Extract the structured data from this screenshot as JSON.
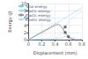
{
  "chart_data": {
    "type": "line",
    "xlabel": "Displacement (mm)",
    "ylabel": "Energy (J)",
    "xlim": [
      0,
      0.8
    ],
    "ylim": [
      0,
      10
    ],
    "xticks": [
      0,
      0.2,
      0.4,
      0.6,
      0.8
    ],
    "yticks": [
      0,
      2,
      4,
      6,
      8,
      10
    ],
    "grid": true,
    "legend": "upper left",
    "series": [
      {
        "name": "Total energy",
        "color": "#88ccee",
        "line_style": "dotted",
        "x": [
          0,
          0.1,
          0.2,
          0.3,
          0.4,
          0.5,
          0.6,
          0.7,
          0.8
        ],
        "values": [
          0,
          1.1,
          2.2,
          3.3,
          4.4,
          5.5,
          6.6,
          7.7,
          8.8
        ]
      },
      {
        "name": "Plastic energy",
        "color": "#aaddee",
        "line_style": "dotted",
        "x": [
          0,
          0.1,
          0.2,
          0.3,
          0.4,
          0.45,
          0.5,
          0.55,
          0.6,
          0.7,
          0.8
        ],
        "values": [
          0,
          0.0,
          0.0,
          0.0,
          0.2,
          0.8,
          2.0,
          3.5,
          5.0,
          6.5,
          7.8
        ]
      },
      {
        "name": "Elastic energy",
        "color": "#999999",
        "line_style": "solid",
        "x": [
          0,
          0.1,
          0.2,
          0.3,
          0.4,
          0.45,
          0.5,
          0.55,
          0.6,
          0.65,
          0.7
        ],
        "values": [
          0,
          1.0,
          2.0,
          3.0,
          4.0,
          4.3,
          3.5,
          2.0,
          0.8,
          0.2,
          0.0
        ]
      },
      {
        "name": "Kinetic energy",
        "color": "#bbddff",
        "line_style": "solid",
        "x": [
          0,
          0.1,
          0.2,
          0.3,
          0.4,
          0.45,
          0.5,
          0.55,
          0.6,
          0.7,
          0.8
        ],
        "values": [
          0,
          0.1,
          0.2,
          0.3,
          0.2,
          0.4,
          0.5,
          1.0,
          0.8,
          0.3,
          0.1
        ]
      },
      {
        "type": "scatter",
        "color": "#444444",
        "marker": "square",
        "x": [
          0.55,
          0.55,
          0.6
        ],
        "values": [
          3.5,
          2.0,
          0.8
        ]
      }
    ]
  }
}
